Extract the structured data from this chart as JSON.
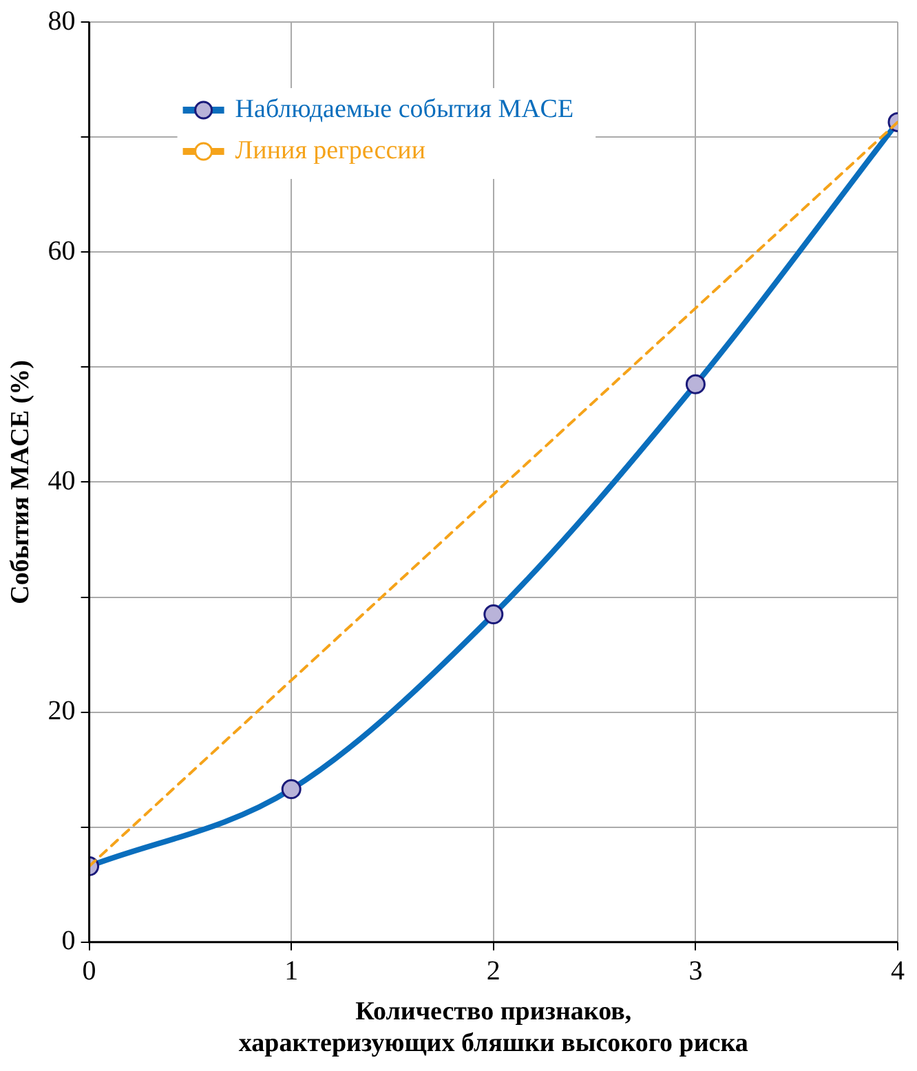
{
  "chart_data": {
    "type": "line",
    "xlabel": "Количество признаков,\nхарактеризующих бляшки высокого риска",
    "ylabel": "События MACE (%)",
    "x": [
      0,
      1,
      2,
      3,
      4
    ],
    "series": [
      {
        "name": "Наблюдаемые события MACE",
        "color": "#0a6ebd",
        "values": [
          6.6,
          13.3,
          28.5,
          48.5,
          71.3
        ],
        "marker": "circle",
        "line_style": "solid"
      },
      {
        "name": "Линия регрессии",
        "color": "#f5a31a",
        "x": [
          0,
          4
        ],
        "values": [
          6.6,
          71.3
        ],
        "marker": "none",
        "line_style": "dashed"
      }
    ],
    "xlim": [
      0,
      4
    ],
    "xticks": [
      0,
      1,
      2,
      3,
      4
    ],
    "ylim": [
      0,
      80
    ],
    "yticks": [
      0,
      {
        "value": 10,
        "label": null
      },
      20,
      {
        "value": 30,
        "label": null
      },
      40,
      {
        "value": 50,
        "label": null
      },
      60,
      {
        "value": 70,
        "label": null
      },
      80
    ],
    "grid": true,
    "legend": "top left"
  }
}
